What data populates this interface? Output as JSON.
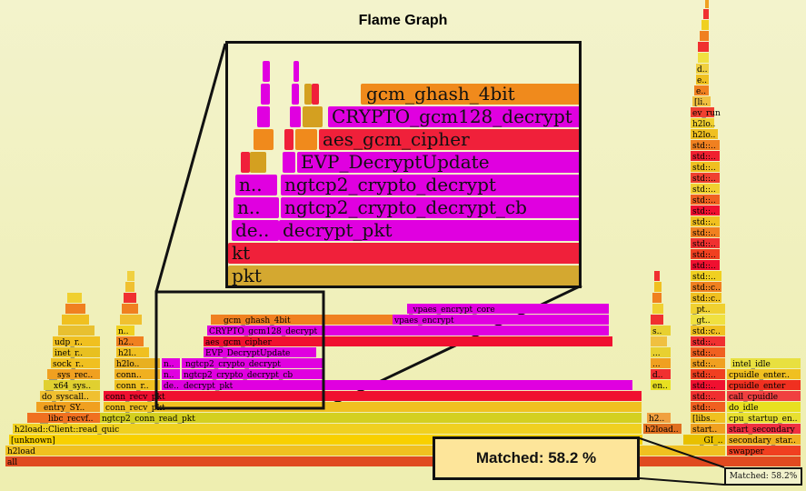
{
  "header": {
    "title": "Flame Graph"
  },
  "status": {
    "matched_label": "Matched: 58.2%",
    "callout_label": "Matched: 58.2 %"
  },
  "colors": {
    "magenta": "#e000e0",
    "red": "#f0203a",
    "orange": "#f08a1c",
    "yellow": "#e8e000",
    "gold": "#d4a020"
  },
  "frames": {
    "all": "all",
    "h2load": "h2load",
    "unknown": "[unknown]",
    "read_quic": "h2load::Client::read_quic",
    "conn_read_pkt": "ngtcp2_conn_read_pkt",
    "libc_recvf": "__libc_recvf..",
    "entry_sy": "entry_SY..",
    "do_syscall": "do_syscall..",
    "x64_sys": "__x64_sys..",
    "sys_rec": "__sys_rec..",
    "sock_r": "sock_r..",
    "inet_r": "inet_r..",
    "udp_r": "udp_r..",
    "conn_recv_left": "conn_r..",
    "conn_left2": "conn..",
    "h2lo": "h2lo..",
    "h2l": "h2l..",
    "h2": "h2..",
    "n_small": "n..",
    "conn_recv_1": "conn_recv_pkt",
    "conn_recv_2": "conn_recv_pkt",
    "decrypt_pkt": "decrypt_pkt",
    "de": "de..",
    "decrypt_cb": "ngtcp2_crypto_decrypt_cb",
    "crypto_decrypt": "ngtcp2_crypto_decrypt",
    "evp_update": "EVP_DecryptUpdate",
    "aes_gcm": "aes_gcm_cipher",
    "crypto_gcm128": "CRYPTO_gcm128_decrypt",
    "gcm_ghash": "gcm_ghash_4bit",
    "vpaes_encrypt": "vpaes_encrypt",
    "vpaes_encrypt_core": "_vpaes_encrypt_core",
    "cpu_startup": "cpu_startup_en..",
    "start_secondary": "start_secondary",
    "secondary_star": "secondary_star..",
    "swapper": "swapper",
    "do_idle": "do_idle",
    "call_cpuidle": "call_cpuidle",
    "cpuidle_enter": "cpuidle_enter",
    "cpuidle_enter2": "cpuidle_enter..",
    "intel_idle": "intel_idle",
    "h2load_right": "h2load..",
    "start": "start..",
    "gl": "_GI_..",
    "libs": "[libs..",
    "h2_r": "h2..",
    "std": "std::..",
    "std_c": "std::c..",
    "gt": "_gt..",
    "pt": "_pt..",
    "ev_run": "ev_run",
    "h2lo_r": "h2lo..",
    "li": "[li..",
    "e": "e..",
    "d": "d..",
    "dots": "...",
    "s": "s..",
    "en": "en..",
    "h2lo_b": "h2lo.."
  },
  "zoom": {
    "gcm_ghash": "gcm_ghash_4bit",
    "crypto_gcm128": "CRYPTO_gcm128_decrypt",
    "aes_gcm": "aes_gcm_cipher",
    "evp_update": "EVP_DecryptUpdate",
    "crypto_decrypt": "ngtcp2_crypto_decrypt",
    "decrypt_cb": "ngtcp2_crypto_decrypt_cb",
    "n1": "n..",
    "n2": "n..",
    "de": "de..",
    "decrypt_pkt": "decrypt_pkt",
    "kt": "kt",
    "pkt": "pkt"
  }
}
